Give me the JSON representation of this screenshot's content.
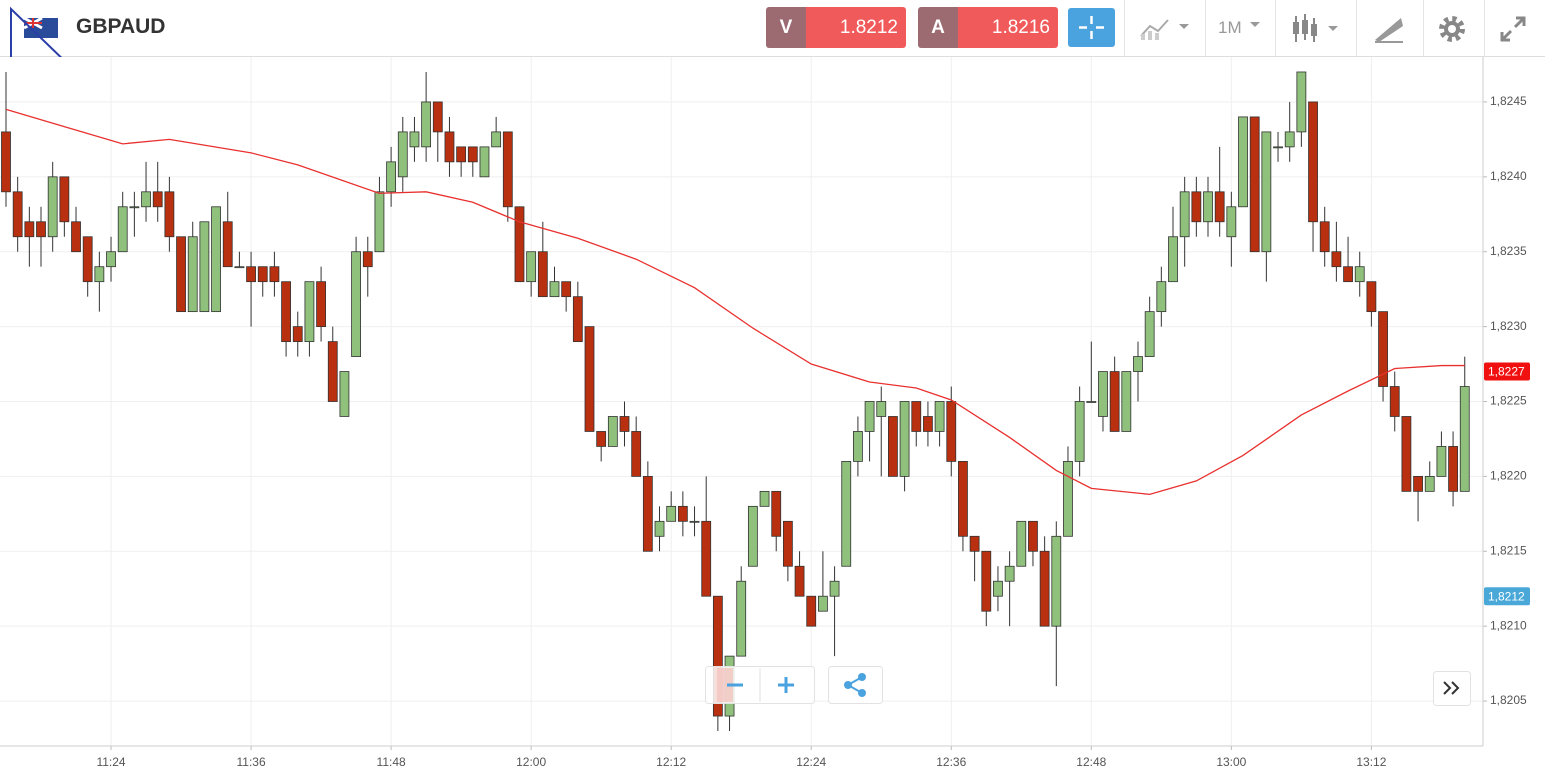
{
  "header": {
    "symbol": "GBPAUD",
    "bid_label": "V",
    "bid": "1.8212",
    "ask_label": "A",
    "ask": "1.8216",
    "timeframe": "1M"
  },
  "chart_data": {
    "type": "candlestick",
    "up_color": "#8fc07c",
    "down_color": "#b8300f",
    "categories": [
      "11:15",
      "11:16",
      "11:17",
      "11:18",
      "11:19",
      "11:20",
      "11:21",
      "11:22",
      "11:23",
      "11:24",
      "11:25",
      "11:26",
      "11:27",
      "11:28",
      "11:29",
      "11:30",
      "11:31",
      "11:32",
      "11:33",
      "11:34",
      "11:35",
      "11:36",
      "11:37",
      "11:38",
      "11:39",
      "11:40",
      "11:41",
      "11:42",
      "11:43",
      "11:44",
      "11:45",
      "11:46",
      "11:47",
      "11:48",
      "11:49",
      "11:50",
      "11:51",
      "11:52",
      "11:53",
      "11:54",
      "11:55",
      "11:56",
      "11:57",
      "11:58",
      "11:59",
      "12:00",
      "12:01",
      "12:02",
      "12:03",
      "12:04",
      "12:05",
      "12:06",
      "12:07",
      "12:08",
      "12:09",
      "12:10",
      "12:11",
      "12:12",
      "12:13",
      "12:14",
      "12:15",
      "12:16",
      "12:17",
      "12:18",
      "12:19",
      "12:20",
      "12:21",
      "12:22",
      "12:23",
      "12:24",
      "12:25",
      "12:26",
      "12:27",
      "12:28",
      "12:29",
      "12:30",
      "12:31",
      "12:32",
      "12:33",
      "12:34",
      "12:35",
      "12:36",
      "12:37",
      "12:38",
      "12:39",
      "12:40",
      "12:41",
      "12:42",
      "12:43",
      "12:44",
      "12:45",
      "12:46",
      "12:47",
      "12:48",
      "12:49",
      "12:50",
      "12:51",
      "12:52",
      "12:53",
      "12:54",
      "12:55",
      "12:56",
      "12:57",
      "12:58",
      "12:59",
      "13:00",
      "13:01",
      "13:02",
      "13:03",
      "13:04",
      "13:05",
      "13:06",
      "13:07",
      "13:08",
      "13:09",
      "13:10",
      "13:11",
      "13:12",
      "13:13",
      "13:14",
      "13:15",
      "13:16",
      "13:17",
      "13:18",
      "13:19",
      "13:20"
    ],
    "open": [
      1.8243,
      1.8239,
      1.8237,
      1.8237,
      1.8236,
      1.824,
      1.8237,
      1.8236,
      1.8233,
      1.8234,
      1.8235,
      1.8238,
      1.8238,
      1.8239,
      1.8239,
      1.8236,
      1.8231,
      1.8231,
      1.8231,
      1.8237,
      1.8234,
      1.8234,
      1.8234,
      1.8234,
      1.8233,
      1.823,
      1.8229,
      1.8233,
      1.8229,
      1.8224,
      1.8228,
      1.8235,
      1.8235,
      1.8239,
      1.824,
      1.8242,
      1.8242,
      1.8245,
      1.8243,
      1.8242,
      1.8242,
      1.824,
      1.8242,
      1.8243,
      1.8238,
      1.8233,
      1.8235,
      1.8232,
      1.8233,
      1.8232,
      1.823,
      1.8223,
      1.8222,
      1.8224,
      1.8223,
      1.822,
      1.8216,
      1.8217,
      1.8218,
      1.8217,
      1.8217,
      1.8212,
      1.8204,
      1.8208,
      1.8214,
      1.8218,
      1.8219,
      1.8217,
      1.8214,
      1.8212,
      1.8211,
      1.8212,
      1.8214,
      1.8221,
      1.8223,
      1.8224,
      1.8224,
      1.822,
      1.8225,
      1.8224,
      1.8223,
      1.8225,
      1.8221,
      1.8216,
      1.8215,
      1.8212,
      1.8213,
      1.8214,
      1.8217,
      1.8215,
      1.821,
      1.8216,
      1.8221,
      1.8225,
      1.8224,
      1.8227,
      1.8223,
      1.8227,
      1.8228,
      1.8231,
      1.8233,
      1.8236,
      1.8239,
      1.8237,
      1.8239,
      1.8236,
      1.8238,
      1.8244,
      1.8235,
      1.8242,
      1.8242,
      1.8243,
      1.8245,
      1.8237,
      1.8235,
      1.8234,
      1.8233,
      1.8233,
      1.8231,
      1.8226,
      1.8224,
      1.822,
      1.8219,
      1.822,
      1.8222,
      1.8219
    ],
    "high": [
      1.8247,
      1.824,
      1.8238,
      1.8238,
      1.8241,
      1.824,
      1.8238,
      1.8236,
      1.8235,
      1.8236,
      1.8239,
      1.8239,
      1.8241,
      1.8241,
      1.824,
      1.8236,
      1.8237,
      1.8237,
      1.8238,
      1.8239,
      1.8235,
      1.8235,
      1.8234,
      1.8235,
      1.8233,
      1.8231,
      1.8233,
      1.8234,
      1.823,
      1.8227,
      1.8236,
      1.8236,
      1.824,
      1.8242,
      1.8244,
      1.8244,
      1.8247,
      1.8245,
      1.8244,
      1.8242,
      1.8242,
      1.8242,
      1.8244,
      1.8243,
      1.8238,
      1.8235,
      1.8237,
      1.8234,
      1.8233,
      1.8233,
      1.823,
      1.8223,
      1.8224,
      1.8225,
      1.8224,
      1.8221,
      1.8218,
      1.8219,
      1.8219,
      1.8218,
      1.822,
      1.8212,
      1.8208,
      1.8214,
      1.8218,
      1.8219,
      1.8219,
      1.8217,
      1.8215,
      1.8212,
      1.8215,
      1.8214,
      1.8221,
      1.8224,
      1.8225,
      1.8226,
      1.8224,
      1.8225,
      1.8225,
      1.8225,
      1.8225,
      1.8226,
      1.8221,
      1.8216,
      1.8215,
      1.8214,
      1.8215,
      1.8217,
      1.8217,
      1.8216,
      1.8217,
      1.8222,
      1.8226,
      1.8229,
      1.8227,
      1.8228,
      1.8227,
      1.8229,
      1.8232,
      1.8234,
      1.8238,
      1.824,
      1.824,
      1.824,
      1.8242,
      1.8239,
      1.8244,
      1.8244,
      1.8243,
      1.8243,
      1.8245,
      1.8247,
      1.8245,
      1.8238,
      1.8237,
      1.8236,
      1.8235,
      1.8233,
      1.8231,
      1.8227,
      1.8224,
      1.822,
      1.8221,
      1.8223,
      1.8223,
      1.8228
    ],
    "low": [
      1.8238,
      1.8235,
      1.8234,
      1.8234,
      1.8235,
      1.8236,
      1.8235,
      1.8232,
      1.8231,
      1.8233,
      1.8235,
      1.8236,
      1.8237,
      1.8237,
      1.8235,
      1.8231,
      1.8231,
      1.8231,
      1.8231,
      1.8234,
      1.8234,
      1.823,
      1.8232,
      1.8232,
      1.8228,
      1.8228,
      1.8228,
      1.8229,
      1.8225,
      1.8224,
      1.8228,
      1.8232,
      1.8235,
      1.8238,
      1.8239,
      1.8241,
      1.8241,
      1.8241,
      1.824,
      1.824,
      1.824,
      1.824,
      1.8242,
      1.8237,
      1.8233,
      1.8232,
      1.8232,
      1.8232,
      1.8231,
      1.8229,
      1.8223,
      1.8221,
      1.8222,
      1.8222,
      1.822,
      1.8215,
      1.8215,
      1.8217,
      1.8216,
      1.8216,
      1.8212,
      1.8203,
      1.8203,
      1.8208,
      1.8214,
      1.8218,
      1.8215,
      1.8213,
      1.8212,
      1.821,
      1.8211,
      1.8208,
      1.8214,
      1.822,
      1.8221,
      1.822,
      1.822,
      1.8219,
      1.8222,
      1.8222,
      1.8222,
      1.822,
      1.8215,
      1.8213,
      1.821,
      1.8211,
      1.821,
      1.8214,
      1.8214,
      1.821,
      1.8206,
      1.8216,
      1.822,
      1.8225,
      1.8223,
      1.8223,
      1.8223,
      1.8225,
      1.8228,
      1.823,
      1.8233,
      1.8234,
      1.8236,
      1.8236,
      1.8236,
      1.8234,
      1.8238,
      1.8235,
      1.8233,
      1.8241,
      1.8241,
      1.8242,
      1.8235,
      1.8234,
      1.8233,
      1.8233,
      1.8232,
      1.823,
      1.8225,
      1.8223,
      1.8219,
      1.8217,
      1.8219,
      1.822,
      1.8218,
      1.8219
    ],
    "close": [
      1.8239,
      1.8236,
      1.8236,
      1.8236,
      1.824,
      1.8237,
      1.8235,
      1.8233,
      1.8234,
      1.8235,
      1.8238,
      1.8238,
      1.8239,
      1.8238,
      1.8236,
      1.8231,
      1.8236,
      1.8237,
      1.8238,
      1.8234,
      1.8234,
      1.8233,
      1.8233,
      1.8233,
      1.8229,
      1.8229,
      1.8233,
      1.823,
      1.8225,
      1.8227,
      1.8235,
      1.8234,
      1.8239,
      1.8241,
      1.8243,
      1.8243,
      1.8245,
      1.8243,
      1.8241,
      1.8241,
      1.8241,
      1.8242,
      1.8243,
      1.8238,
      1.8233,
      1.8235,
      1.8232,
      1.8233,
      1.8232,
      1.8229,
      1.8223,
      1.8222,
      1.8224,
      1.8223,
      1.822,
      1.8215,
      1.8217,
      1.8218,
      1.8217,
      1.8217,
      1.8212,
      1.8204,
      1.8208,
      1.8213,
      1.8218,
      1.8219,
      1.8216,
      1.8214,
      1.8212,
      1.821,
      1.8212,
      1.8213,
      1.8221,
      1.8223,
      1.8225,
      1.8225,
      1.822,
      1.8225,
      1.8223,
      1.8223,
      1.8225,
      1.8221,
      1.8216,
      1.8215,
      1.8211,
      1.8213,
      1.8214,
      1.8217,
      1.8215,
      1.821,
      1.8216,
      1.8221,
      1.8225,
      1.8225,
      1.8227,
      1.8223,
      1.8227,
      1.8228,
      1.8231,
      1.8233,
      1.8236,
      1.8239,
      1.8237,
      1.8239,
      1.8237,
      1.8238,
      1.8244,
      1.8235,
      1.8243,
      1.8242,
      1.8243,
      1.8247,
      1.8237,
      1.8235,
      1.8234,
      1.8233,
      1.8234,
      1.8231,
      1.8226,
      1.8224,
      1.8219,
      1.8219,
      1.822,
      1.8222,
      1.8219,
      1.8226
    ],
    "overlay": {
      "color": "#e8312f",
      "x": [
        "11:15",
        "11:25",
        "11:29",
        "11:36",
        "11:40",
        "11:47",
        "11:51",
        "11:55",
        "11:59",
        "12:04",
        "12:09",
        "12:14",
        "12:19",
        "12:24",
        "12:29",
        "12:33",
        "12:36",
        "12:41",
        "12:45",
        "12:48",
        "12:53",
        "12:57",
        "13:01",
        "13:06",
        "13:10",
        "13:14",
        "13:18",
        "13:20"
      ],
      "values": [
        1.82445,
        1.82422,
        1.82425,
        1.82416,
        1.82408,
        1.82389,
        1.8239,
        1.82383,
        1.8237,
        1.82359,
        1.82345,
        1.82326,
        1.82299,
        1.82275,
        1.82263,
        1.82259,
        1.82251,
        1.82226,
        1.82204,
        1.82192,
        1.82188,
        1.82197,
        1.82214,
        1.82241,
        1.82257,
        1.82272,
        1.82274,
        1.82274
      ]
    },
    "ylim": [
      1.8202,
      1.8248
    ],
    "yticks": [
      {
        "value": 1.8205,
        "label": "1,8205"
      },
      {
        "value": 1.821,
        "label": "1,8210"
      },
      {
        "value": 1.8215,
        "label": "1,8215"
      },
      {
        "value": 1.822,
        "label": "1,8220"
      },
      {
        "value": 1.8225,
        "label": "1,8225"
      },
      {
        "value": 1.823,
        "label": "1,8230"
      },
      {
        "value": 1.8235,
        "label": "1,8235"
      },
      {
        "value": 1.824,
        "label": "1,8240"
      },
      {
        "value": 1.8245,
        "label": "1,8245"
      }
    ],
    "xticks": [
      "11:24",
      "11:36",
      "11:48",
      "12:00",
      "12:12",
      "12:24",
      "12:36",
      "12:48",
      "13:00",
      "13:12"
    ],
    "price_markers": [
      {
        "value": 1.8227,
        "label": "1,8227",
        "color": "#f01010"
      },
      {
        "value": 1.8212,
        "label": "1,8212",
        "color": "#4aa8d8"
      }
    ],
    "grid": true
  }
}
